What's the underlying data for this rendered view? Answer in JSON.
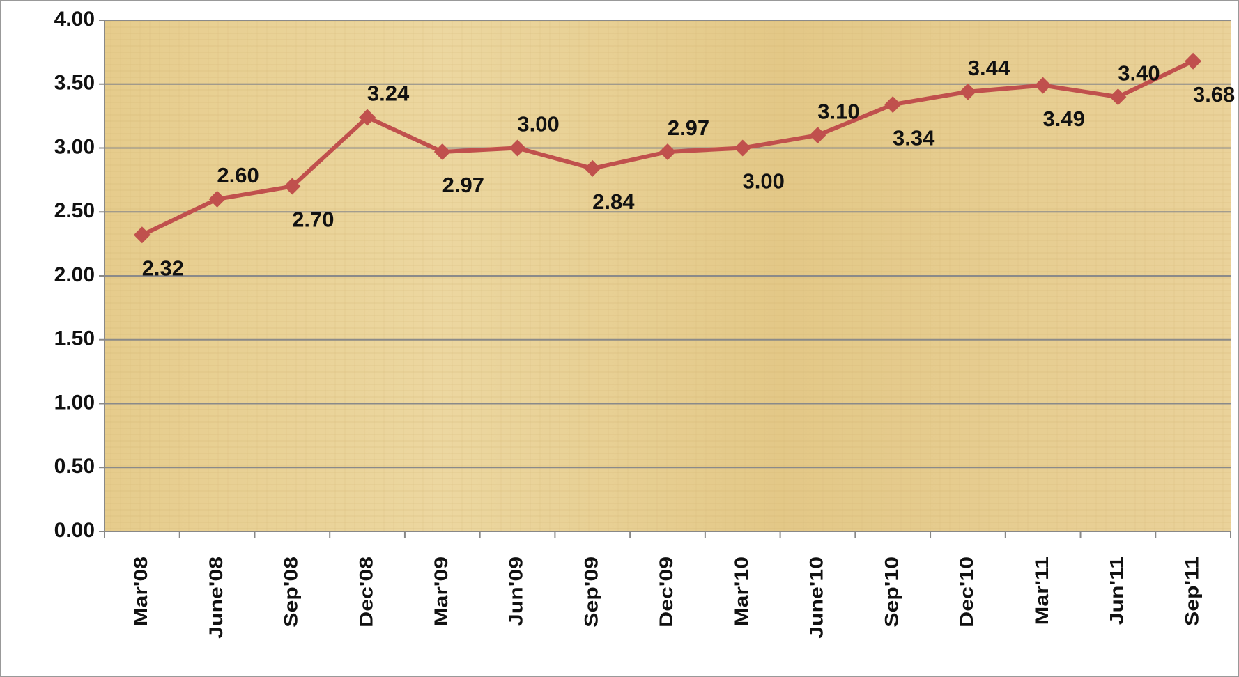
{
  "chart_data": {
    "type": "line",
    "categories": [
      "Mar'08",
      "June'08",
      "Sep'08",
      "Dec'08",
      "Mar'09",
      "Jun'09",
      "Sep'09",
      "Dec'09",
      "Mar'10",
      "June'10",
      "Sep'10",
      "Dec'10",
      "Mar'11",
      "Jun'11",
      "Sep'11"
    ],
    "series": [
      {
        "color": "#c0504d",
        "values": [
          2.32,
          2.6,
          2.7,
          3.24,
          2.97,
          3,
          2.84,
          2.97,
          3,
          3.1,
          3.34,
          3.44,
          3.49,
          3.4,
          3.68
        ],
        "value_labels": [
          "2.32",
          "2.60",
          "2.70",
          "3.24",
          "2.97",
          "3.00",
          "2.84",
          "2.97",
          "3.00",
          "3.10",
          "3.34",
          "3.44",
          "3.49",
          "3.40",
          "3.68"
        ]
      }
    ],
    "ylim": [
      0,
      4
    ],
    "yticks": [
      {
        "value": 0,
        "label": "0.00"
      },
      {
        "value": 0.5,
        "label": "0.50"
      },
      {
        "value": 1,
        "label": "1.00"
      },
      {
        "value": 1.5,
        "label": "1.50"
      },
      {
        "value": 2,
        "label": "2.00"
      },
      {
        "value": 2.5,
        "label": "2.50"
      },
      {
        "value": 3,
        "label": "3.00"
      },
      {
        "value": 3.5,
        "label": "3.50"
      },
      {
        "value": 4,
        "label": "4.00"
      }
    ],
    "grid": true
  }
}
